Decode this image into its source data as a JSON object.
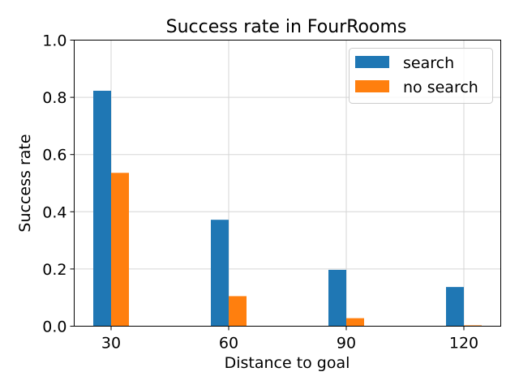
{
  "chart_data": {
    "type": "bar",
    "title": "Success rate in FourRooms",
    "xlabel": "Distance to goal",
    "ylabel": "Success rate",
    "categories": [
      "30",
      "60",
      "90",
      "120"
    ],
    "series": [
      {
        "name": "search",
        "color": "#1f77b4",
        "values": [
          0.823,
          0.372,
          0.197,
          0.137
        ]
      },
      {
        "name": "no search",
        "color": "#ff7f0e",
        "values": [
          0.536,
          0.105,
          0.028,
          0.003
        ]
      }
    ],
    "ylim": [
      0,
      1.0
    ],
    "yticks": [
      "0.0",
      "0.2",
      "0.4",
      "0.6",
      "0.8",
      "1.0"
    ],
    "grid": true,
    "legend_position": "top-right"
  }
}
